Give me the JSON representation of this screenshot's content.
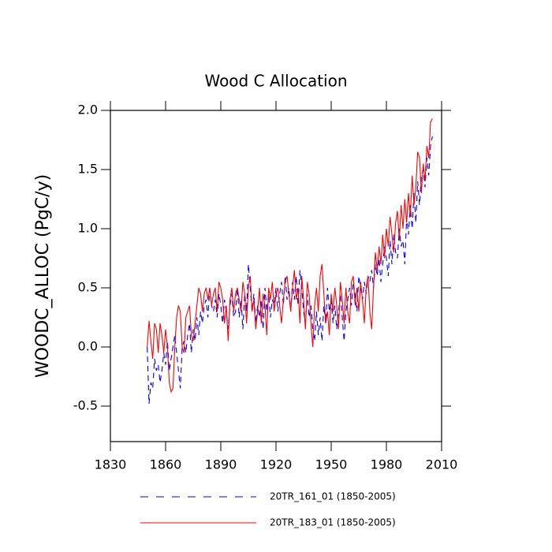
{
  "chart_data": {
    "type": "line",
    "title": "Wood C Allocation",
    "y_label": "WOODC_ALLOC  (PgC/y)",
    "x": [
      1850,
      1851,
      1852,
      1853,
      1854,
      1855,
      1856,
      1857,
      1858,
      1859,
      1860,
      1861,
      1862,
      1863,
      1864,
      1865,
      1866,
      1867,
      1868,
      1869,
      1870,
      1871,
      1872,
      1873,
      1874,
      1875,
      1876,
      1877,
      1878,
      1879,
      1880,
      1881,
      1882,
      1883,
      1884,
      1885,
      1886,
      1887,
      1888,
      1889,
      1890,
      1891,
      1892,
      1893,
      1894,
      1895,
      1896,
      1897,
      1898,
      1899,
      1900,
      1901,
      1902,
      1903,
      1904,
      1905,
      1906,
      1907,
      1908,
      1909,
      1910,
      1911,
      1912,
      1913,
      1914,
      1915,
      1916,
      1917,
      1918,
      1919,
      1920,
      1921,
      1922,
      1923,
      1924,
      1925,
      1926,
      1927,
      1928,
      1929,
      1930,
      1931,
      1932,
      1933,
      1934,
      1935,
      1936,
      1937,
      1938,
      1939,
      1940,
      1941,
      1942,
      1943,
      1944,
      1945,
      1946,
      1947,
      1948,
      1949,
      1950,
      1951,
      1952,
      1953,
      1954,
      1955,
      1956,
      1957,
      1958,
      1959,
      1960,
      1961,
      1962,
      1963,
      1964,
      1965,
      1966,
      1967,
      1968,
      1969,
      1970,
      1971,
      1972,
      1973,
      1974,
      1975,
      1976,
      1977,
      1978,
      1979,
      1980,
      1981,
      1982,
      1983,
      1984,
      1985,
      1986,
      1987,
      1988,
      1989,
      1990,
      1991,
      1992,
      1993,
      1994,
      1995,
      1996,
      1997,
      1998,
      1999,
      2000,
      2001,
      2002,
      2003,
      2004,
      2005
    ],
    "series": [
      {
        "name": "20TR_161_01 (1850-2005)",
        "color": "#0000ff",
        "dashed": true,
        "values": [
          0.0,
          -0.48,
          -0.3,
          -0.35,
          -0.1,
          -0.2,
          -0.15,
          -0.3,
          -0.2,
          -0.05,
          -0.15,
          0.05,
          -0.2,
          -0.1,
          0.0,
          0.1,
          -0.05,
          -0.2,
          -0.35,
          0.0,
          0.05,
          -0.05,
          0.1,
          0.2,
          -0.05,
          0.15,
          0.05,
          0.25,
          0.1,
          0.3,
          0.2,
          0.35,
          0.4,
          0.25,
          0.5,
          0.35,
          0.3,
          0.4,
          0.25,
          0.45,
          0.35,
          0.2,
          0.4,
          0.3,
          0.15,
          0.35,
          0.45,
          0.25,
          0.3,
          0.5,
          0.25,
          0.4,
          0.15,
          0.45,
          0.3,
          0.7,
          0.5,
          0.3,
          0.45,
          0.2,
          0.35,
          0.25,
          0.4,
          0.15,
          0.5,
          0.3,
          0.45,
          0.25,
          0.4,
          0.35,
          0.5,
          0.3,
          0.45,
          0.55,
          0.35,
          0.6,
          0.4,
          0.5,
          0.3,
          0.55,
          0.4,
          0.6,
          0.35,
          0.65,
          0.5,
          0.3,
          0.2,
          0.45,
          0.25,
          0.35,
          0.15,
          0.05,
          0.3,
          0.1,
          0.25,
          0.05,
          0.35,
          0.2,
          0.5,
          0.3,
          0.4,
          0.2,
          0.35,
          0.15,
          0.3,
          0.45,
          0.25,
          0.05,
          0.3,
          0.4,
          0.5,
          0.35,
          0.55,
          0.45,
          0.3,
          0.6,
          0.5,
          0.4,
          0.55,
          0.45,
          0.6,
          0.55,
          0.65,
          0.5,
          0.7,
          0.6,
          0.75,
          0.55,
          0.7,
          0.85,
          0.75,
          0.6,
          0.9,
          0.7,
          0.95,
          0.8,
          0.75,
          1.0,
          0.85,
          0.9,
          0.7,
          1.1,
          0.95,
          1.2,
          1.0,
          1.3,
          1.05,
          1.4,
          1.2,
          1.45,
          1.5,
          1.35,
          1.6,
          1.45,
          1.7,
          1.78
        ]
      },
      {
        "name": "20TR_183_01 (1850-2005)",
        "color": "#ff0000",
        "dashed": false,
        "values": [
          0.0,
          0.22,
          0.05,
          -0.1,
          0.2,
          0.15,
          -0.05,
          0.2,
          0.1,
          -0.05,
          0.15,
          0.0,
          -0.3,
          -0.38,
          -0.35,
          0.0,
          0.25,
          0.35,
          0.3,
          0.0,
          -0.05,
          0.25,
          0.3,
          0.35,
          0.1,
          0.05,
          0.2,
          0.35,
          0.5,
          0.45,
          0.3,
          0.45,
          0.5,
          0.4,
          0.5,
          0.35,
          0.45,
          0.5,
          0.3,
          0.55,
          0.5,
          0.4,
          0.2,
          0.35,
          0.05,
          0.4,
          0.5,
          0.3,
          0.45,
          0.5,
          0.4,
          0.3,
          0.55,
          0.45,
          0.2,
          0.5,
          0.6,
          0.3,
          0.4,
          0.15,
          0.3,
          0.5,
          0.2,
          0.45,
          0.35,
          0.1,
          0.5,
          0.4,
          0.55,
          0.3,
          0.45,
          0.5,
          0.35,
          0.2,
          0.4,
          0.55,
          0.6,
          0.45,
          0.3,
          0.5,
          0.65,
          0.4,
          0.5,
          0.2,
          0.6,
          0.4,
          0.15,
          0.55,
          0.45,
          0.2,
          0.0,
          0.35,
          0.5,
          0.3,
          0.6,
          0.7,
          0.45,
          0.2,
          0.3,
          0.1,
          0.45,
          0.3,
          0.5,
          0.35,
          0.15,
          0.55,
          0.4,
          0.2,
          0.5,
          0.3,
          0.2,
          0.55,
          0.6,
          0.35,
          0.5,
          0.3,
          0.55,
          0.4,
          0.2,
          0.5,
          0.6,
          0.3,
          0.15,
          0.5,
          0.8,
          0.65,
          0.85,
          0.7,
          0.95,
          0.75,
          1.0,
          0.85,
          1.1,
          0.95,
          0.8,
          1.05,
          1.15,
          0.9,
          1.2,
          1.0,
          1.25,
          1.05,
          1.3,
          1.1,
          1.45,
          1.2,
          1.35,
          1.65,
          1.6,
          1.3,
          1.55,
          1.4,
          1.7,
          1.6,
          1.9,
          1.93
        ]
      }
    ],
    "xlim": [
      1830,
      2010
    ],
    "xticks": [
      1830,
      1860,
      1890,
      1920,
      1950,
      1980,
      2010
    ],
    "ylim": [
      -0.8,
      2.0
    ],
    "yticks": [
      {
        "value": -0.5,
        "label": "-0.5"
      },
      {
        "value": 0,
        "label": "0.0"
      },
      {
        "value": 0.5,
        "label": "0.5"
      },
      {
        "value": 1,
        "label": "1.0"
      },
      {
        "value": 1.5,
        "label": "1.5"
      },
      {
        "value": 2,
        "label": "2.0"
      }
    ],
    "grid": false,
    "legend": "bottom"
  }
}
